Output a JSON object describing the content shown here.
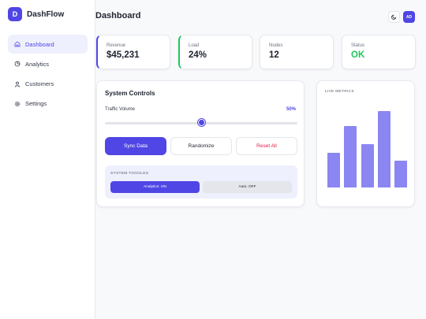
{
  "brand": {
    "logo_letter": "D",
    "name": "DashFlow"
  },
  "sidebar": {
    "items": [
      {
        "label": "Dashboard",
        "icon": "home-icon",
        "active": true
      },
      {
        "label": "Analytics",
        "icon": "pie-chart-icon",
        "active": false
      },
      {
        "label": "Customers",
        "icon": "user-icon",
        "active": false
      },
      {
        "label": "Settings",
        "icon": "gear-icon",
        "active": false
      }
    ]
  },
  "header": {
    "title": "Dashboard",
    "theme_icon": "moon-icon",
    "avatar_initials": "AD"
  },
  "stats": [
    {
      "label": "Revenue",
      "value": "$45,231"
    },
    {
      "label": "Load",
      "value": "24%"
    },
    {
      "label": "Nodes",
      "value": "12"
    },
    {
      "label": "Status",
      "value": "OK"
    }
  ],
  "controls": {
    "title": "System Controls",
    "slider_label": "Traffic Volume",
    "slider_value_text": "50%",
    "slider_fraction": 0.5,
    "buttons": {
      "primary": "Sync Data",
      "secondary": "Randomize",
      "danger": "Reset All"
    },
    "toggles_title": "SYSTEM TOGGLES",
    "toggle_analytics": "Analytics: ON",
    "toggle_auto": "Auto: OFF"
  },
  "metrics": {
    "title": "LIVE METRICS",
    "bar_levels": [
      0.45,
      0.8,
      0.57,
      1.0,
      0.35
    ]
  },
  "colors": {
    "accent": "#4f46e5",
    "success": "#22c55e",
    "danger": "#e11d48",
    "bar": "#8b86f2"
  }
}
